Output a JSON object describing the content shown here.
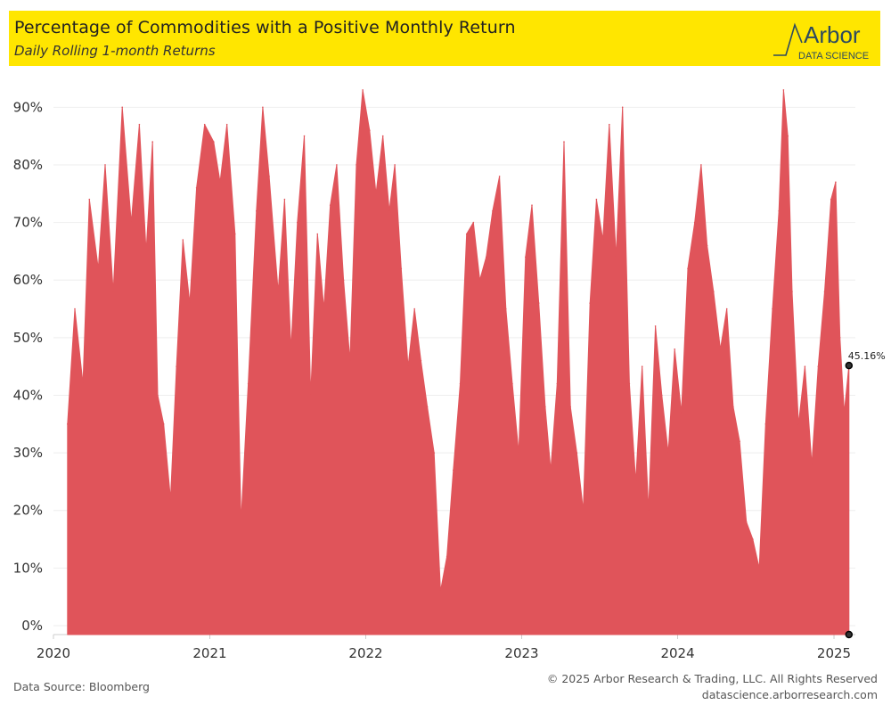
{
  "header": {
    "title": "Percentage of Commodities with a Positive Monthly Return",
    "subtitle": "Daily Rolling 1-month Returns",
    "logo_text": "Arbor",
    "logo_subtext": "DATA SCIENCE"
  },
  "footer": {
    "source": "Data Source: Bloomberg",
    "copyright": "© 2025 Arbor Research & Trading, LLC. All Rights Reserved",
    "website": "datascience.arborresearch.com"
  },
  "colors": {
    "accent": "#ffe600",
    "series": "#e0545a",
    "grid": "#eeeeee"
  },
  "chart_data": {
    "type": "area",
    "title": "Percentage of Commodities with a Positive Monthly Return",
    "subtitle": "Daily Rolling 1-month Returns",
    "xlabel": "",
    "ylabel": "",
    "ylim": [
      0,
      0.95
    ],
    "xlim": [
      "2020-01-01",
      "2025-02-20"
    ],
    "y_ticks": [
      0,
      0.1,
      0.2,
      0.3,
      0.4,
      0.5,
      0.6,
      0.7,
      0.8,
      0.9
    ],
    "y_tick_labels": [
      "0%",
      "10%",
      "20%",
      "30%",
      "40%",
      "50%",
      "60%",
      "70%",
      "80%",
      "90%"
    ],
    "x_ticks": [
      "2020-01-01",
      "2021-01-01",
      "2022-01-01",
      "2023-01-01",
      "2024-01-01",
      "2025-01-01"
    ],
    "x_tick_labels": [
      "2020",
      "2021",
      "2022",
      "2023",
      "2024",
      "2025"
    ],
    "grid": true,
    "series": [
      {
        "color": "#e0545a",
        "points": [
          [
            "2020-02-03",
            0.35
          ],
          [
            "2020-02-20",
            0.55
          ],
          [
            "2020-03-10",
            0.42
          ],
          [
            "2020-03-25",
            0.74
          ],
          [
            "2020-04-15",
            0.62
          ],
          [
            "2020-05-01",
            0.8
          ],
          [
            "2020-05-20",
            0.58
          ],
          [
            "2020-06-10",
            0.9
          ],
          [
            "2020-07-01",
            0.7
          ],
          [
            "2020-07-20",
            0.87
          ],
          [
            "2020-08-05",
            0.65
          ],
          [
            "2020-08-20",
            0.84
          ],
          [
            "2020-09-01",
            0.4
          ],
          [
            "2020-09-15",
            0.35
          ],
          [
            "2020-10-01",
            0.22
          ],
          [
            "2020-10-15",
            0.45
          ],
          [
            "2020-10-30",
            0.67
          ],
          [
            "2020-11-15",
            0.56
          ],
          [
            "2020-12-01",
            0.76
          ],
          [
            "2020-12-20",
            0.87
          ],
          [
            "2021-01-10",
            0.84
          ],
          [
            "2021-01-25",
            0.77
          ],
          [
            "2021-02-10",
            0.87
          ],
          [
            "2021-03-01",
            0.68
          ],
          [
            "2021-03-15",
            0.18
          ],
          [
            "2021-04-01",
            0.42
          ],
          [
            "2021-04-20",
            0.72
          ],
          [
            "2021-05-05",
            0.9
          ],
          [
            "2021-05-20",
            0.78
          ],
          [
            "2021-06-10",
            0.58
          ],
          [
            "2021-06-25",
            0.74
          ],
          [
            "2021-07-10",
            0.48
          ],
          [
            "2021-07-25",
            0.7
          ],
          [
            "2021-08-10",
            0.85
          ],
          [
            "2021-08-25",
            0.4
          ],
          [
            "2021-09-10",
            0.68
          ],
          [
            "2021-09-25",
            0.55
          ],
          [
            "2021-10-10",
            0.73
          ],
          [
            "2021-10-25",
            0.8
          ],
          [
            "2021-11-10",
            0.6
          ],
          [
            "2021-11-25",
            0.46
          ],
          [
            "2021-12-10",
            0.8
          ],
          [
            "2021-12-25",
            0.93
          ],
          [
            "2022-01-10",
            0.86
          ],
          [
            "2022-01-25",
            0.75
          ],
          [
            "2022-02-10",
            0.85
          ],
          [
            "2022-02-25",
            0.72
          ],
          [
            "2022-03-10",
            0.8
          ],
          [
            "2022-03-25",
            0.62
          ],
          [
            "2022-04-10",
            0.45
          ],
          [
            "2022-04-25",
            0.55
          ],
          [
            "2022-05-10",
            0.46
          ],
          [
            "2022-05-25",
            0.38
          ],
          [
            "2022-06-10",
            0.3
          ],
          [
            "2022-06-25",
            0.06
          ],
          [
            "2022-07-10",
            0.12
          ],
          [
            "2022-07-25",
            0.27
          ],
          [
            "2022-08-10",
            0.42
          ],
          [
            "2022-08-25",
            0.68
          ],
          [
            "2022-09-10",
            0.7
          ],
          [
            "2022-09-25",
            0.6
          ],
          [
            "2022-10-10",
            0.64
          ],
          [
            "2022-10-25",
            0.72
          ],
          [
            "2022-11-10",
            0.78
          ],
          [
            "2022-11-25",
            0.55
          ],
          [
            "2022-12-10",
            0.42
          ],
          [
            "2022-12-25",
            0.3
          ],
          [
            "2023-01-10",
            0.64
          ],
          [
            "2023-01-25",
            0.73
          ],
          [
            "2023-02-10",
            0.56
          ],
          [
            "2023-02-25",
            0.38
          ],
          [
            "2023-03-10",
            0.27
          ],
          [
            "2023-03-25",
            0.42
          ],
          [
            "2023-04-10",
            0.84
          ],
          [
            "2023-04-25",
            0.38
          ],
          [
            "2023-05-10",
            0.3
          ],
          [
            "2023-05-25",
            0.2
          ],
          [
            "2023-06-10",
            0.56
          ],
          [
            "2023-06-25",
            0.74
          ],
          [
            "2023-07-10",
            0.67
          ],
          [
            "2023-07-25",
            0.87
          ],
          [
            "2023-08-10",
            0.64
          ],
          [
            "2023-08-25",
            0.9
          ],
          [
            "2023-09-10",
            0.42
          ],
          [
            "2023-09-25",
            0.25
          ],
          [
            "2023-10-10",
            0.45
          ],
          [
            "2023-10-25",
            0.2
          ],
          [
            "2023-11-10",
            0.52
          ],
          [
            "2023-11-25",
            0.4
          ],
          [
            "2023-12-10",
            0.3
          ],
          [
            "2023-12-25",
            0.48
          ],
          [
            "2024-01-10",
            0.37
          ],
          [
            "2024-01-25",
            0.62
          ],
          [
            "2024-02-10",
            0.7
          ],
          [
            "2024-02-25",
            0.8
          ],
          [
            "2024-03-10",
            0.66
          ],
          [
            "2024-03-25",
            0.58
          ],
          [
            "2024-04-10",
            0.48
          ],
          [
            "2024-04-25",
            0.55
          ],
          [
            "2024-05-10",
            0.38
          ],
          [
            "2024-05-25",
            0.32
          ],
          [
            "2024-06-10",
            0.18
          ],
          [
            "2024-06-25",
            0.15
          ],
          [
            "2024-07-10",
            0.1
          ],
          [
            "2024-07-25",
            0.35
          ],
          [
            "2024-08-10",
            0.55
          ],
          [
            "2024-08-25",
            0.72
          ],
          [
            "2024-09-05",
            0.93
          ],
          [
            "2024-09-15",
            0.85
          ],
          [
            "2024-09-25",
            0.58
          ],
          [
            "2024-10-10",
            0.35
          ],
          [
            "2024-10-25",
            0.45
          ],
          [
            "2024-11-10",
            0.28
          ],
          [
            "2024-11-25",
            0.45
          ],
          [
            "2024-12-10",
            0.58
          ],
          [
            "2024-12-25",
            0.74
          ],
          [
            "2025-01-05",
            0.77
          ],
          [
            "2025-01-15",
            0.5
          ],
          [
            "2025-01-25",
            0.37
          ],
          [
            "2025-02-05",
            0.4516
          ]
        ]
      }
    ],
    "annotations": [
      {
        "label": "45.16%",
        "x": "2025-02-05",
        "y": 0.4516
      }
    ]
  }
}
